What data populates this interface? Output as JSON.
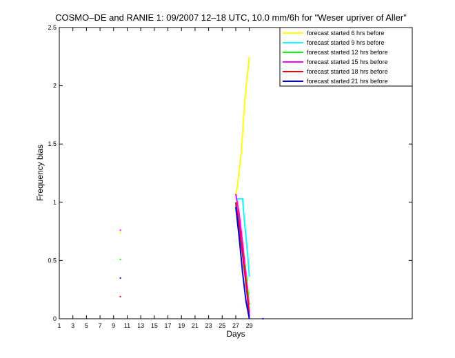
{
  "chart_data": {
    "type": "line",
    "title": "COSMO–DE and RANIE 1: 09/2007 12–18 UTC, 10.0 mm/6h for \"Weser upriver of Aller\"",
    "xlabel": "Days",
    "ylabel": "Frequency bias",
    "xlim": [
      1,
      53
    ],
    "ylim": [
      0,
      2.5
    ],
    "xticks": [
      "1",
      "3",
      "5",
      "7",
      "9",
      "11",
      "13",
      "15",
      "17",
      "19",
      "21",
      "23",
      "25",
      "27",
      "29"
    ],
    "xtick_values": [
      1,
      3,
      5,
      7,
      9,
      11,
      13,
      15,
      17,
      19,
      21,
      23,
      25,
      27,
      29
    ],
    "yticks": [
      "0",
      "0.5",
      "1",
      "1.5",
      "2",
      "2.5"
    ],
    "ytick_values": [
      0,
      0.5,
      1,
      1.5,
      2,
      2.5
    ],
    "grid": false,
    "legend_position": "top-right",
    "series": [
      {
        "name": "forecast started 6 hrs before",
        "color": "#ffff00",
        "x": [
          27,
          27.25,
          27.5,
          27.75,
          28,
          28.25,
          28.5,
          28.75,
          29
        ],
        "y": [
          1.06,
          1.15,
          1.28,
          1.4,
          1.6,
          1.82,
          2.0,
          2.12,
          2.25
        ],
        "points": [
          {
            "x": 10,
            "y": 0.74
          }
        ]
      },
      {
        "name": "forecast started 9 hrs before",
        "color": "#00ffff",
        "x": [
          27,
          27.3,
          27.6,
          28,
          28.25,
          28.5,
          28.75,
          29
        ],
        "y": [
          1.03,
          1.03,
          1.03,
          1.03,
          0.85,
          0.7,
          0.55,
          0.36
        ],
        "points": []
      },
      {
        "name": "forecast started 12 hrs before",
        "color": "#00ff00",
        "x": [
          27,
          27.5,
          28,
          28.5,
          29
        ],
        "y": [
          0.98,
          0.85,
          0.65,
          0.4,
          0.12
        ],
        "points": [
          {
            "x": 10,
            "y": 0.51
          }
        ]
      },
      {
        "name": "forecast started 15 hrs before",
        "color": "#ff00ff",
        "x": [
          27,
          27.5,
          28,
          28.5,
          29
        ],
        "y": [
          1.07,
          0.9,
          0.65,
          0.35,
          0.05
        ],
        "points": [
          {
            "x": 10,
            "y": 0.76
          }
        ]
      },
      {
        "name": "forecast started 18 hrs before",
        "color": "#ff0000",
        "x": [
          27,
          27.5,
          28,
          28.5,
          29
        ],
        "y": [
          1.0,
          0.8,
          0.55,
          0.3,
          0.02
        ],
        "points": [
          {
            "x": 10,
            "y": 0.19
          }
        ]
      },
      {
        "name": "forecast started 21 hrs before",
        "color": "#0000ff",
        "x": [
          27,
          27.5,
          28,
          28.5,
          29
        ],
        "y": [
          0.96,
          0.7,
          0.4,
          0.15,
          0.0
        ],
        "points": [
          {
            "x": 10,
            "y": 0.35
          },
          {
            "x": 31,
            "y": 0.0
          }
        ]
      }
    ]
  }
}
